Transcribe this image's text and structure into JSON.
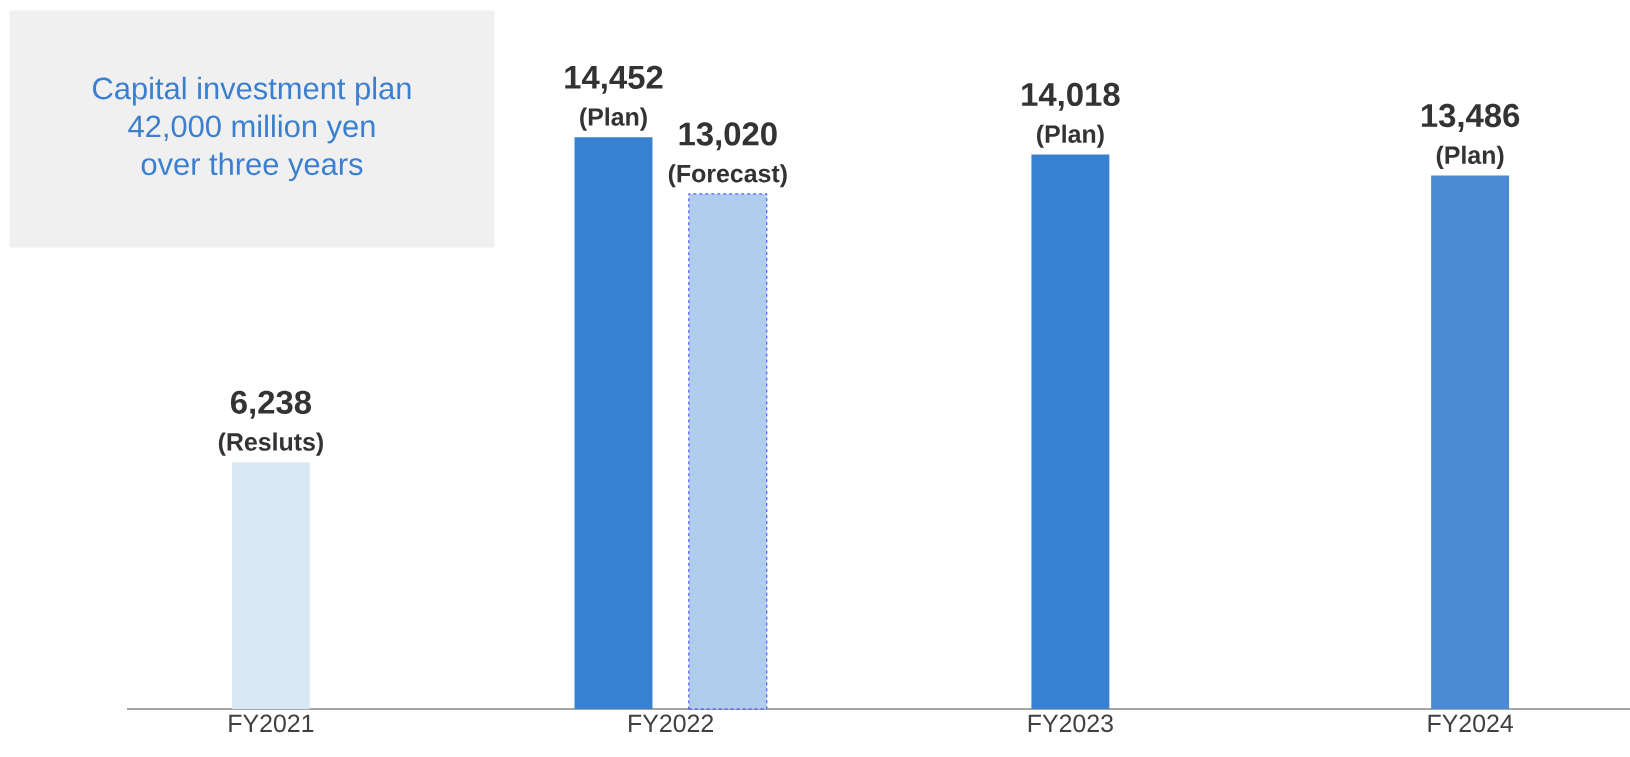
{
  "chart_data": {
    "type": "bar",
    "categories": [
      "FY2021",
      "FY2022",
      "FY2023",
      "FY2024"
    ],
    "series": [
      {
        "values": [
          6238,
          14452,
          14018,
          13486
        ],
        "colors": [
          "#d8e9f5",
          "#3880d0",
          "#3880d0",
          "#4a8bd4"
        ],
        "value_labels": [
          "6,238",
          "14,452",
          "14,018",
          "13,486"
        ]
      },
      {
        "values": [
          null,
          13020,
          null,
          null
        ],
        "color": "#b0cded",
        "line_style": "dashed",
        "value_labels": [
          null,
          "13,020",
          null,
          null
        ]
      }
    ],
    "annotations": [
      "Capital investment plan\n42,000 million yen\nover three years",
      "(Resluts)",
      "(Plan)",
      "(Forecast)",
      "(Plan)",
      "(Plan)"
    ]
  }
}
